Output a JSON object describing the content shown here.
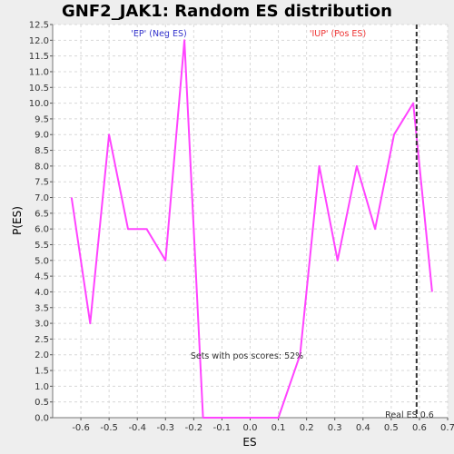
{
  "chart_data": {
    "type": "line",
    "title": "GNF2_JAK1: Random ES distribution",
    "xlabel": "ES",
    "ylabel": "P(ES)",
    "xlim": [
      -0.7,
      0.7
    ],
    "ylim": [
      0,
      12.5
    ],
    "xticks": [
      -0.6,
      -0.5,
      -0.4,
      -0.3,
      -0.2,
      -0.1,
      0.0,
      0.1,
      0.2,
      0.3,
      0.4,
      0.5,
      0.6,
      0.7
    ],
    "xtick_labels": [
      "-0.6",
      "-0.5",
      "-0.4",
      "-0.3",
      "-0.2",
      "-0.1",
      "0.0",
      "0.1",
      "0.2",
      "0.3",
      "0.4",
      "0.5",
      "0.6",
      "0.7"
    ],
    "yticks": [
      0,
      0.5,
      1,
      1.5,
      2,
      2.5,
      3,
      3.5,
      4,
      4.5,
      5,
      5.5,
      6,
      6.5,
      7,
      7.5,
      8,
      8.5,
      9,
      9.5,
      10,
      10.5,
      11,
      11.5,
      12,
      12.5
    ],
    "ytick_labels": [
      "0.0",
      "0.5",
      "1.0",
      "1.5",
      "2.0",
      "2.5",
      "3.0",
      "3.5",
      "4.0",
      "4.5",
      "5.0",
      "5.5",
      "6.0",
      "6.5",
      "7.0",
      "7.5",
      "8.0",
      "8.5",
      "9.0",
      "9.5",
      "10.0",
      "10.5",
      "11.0",
      "11.5",
      "12.0",
      "12.5"
    ],
    "grid": true,
    "series": [
      {
        "color": "#ff44ff",
        "x": [
          -0.633,
          -0.567,
          -0.5,
          -0.433,
          -0.367,
          -0.3,
          -0.233,
          -0.167,
          -0.1,
          -0.033,
          0.033,
          0.1,
          0.177,
          0.245,
          0.31,
          0.378,
          0.443,
          0.51,
          0.578,
          0.645
        ],
        "y": [
          7.0,
          3.0,
          9.0,
          6.0,
          6.0,
          5.0,
          12.0,
          0.0,
          0.0,
          0.0,
          0.0,
          0.0,
          2.0,
          8.0,
          5.0,
          8.0,
          6.0,
          9.0,
          10.0,
          4.0
        ]
      }
    ],
    "real_es": 0.59,
    "annotations": {
      "neg_label": "'EP' (Neg ES)",
      "neg_color": "#3333cc",
      "pos_label": "'IUP' (Pos ES)",
      "pos_color": "#ee3333",
      "pos_scores_text": "Sets with pos scores: 52%",
      "real_es_text": "Real ES 0.6"
    }
  }
}
